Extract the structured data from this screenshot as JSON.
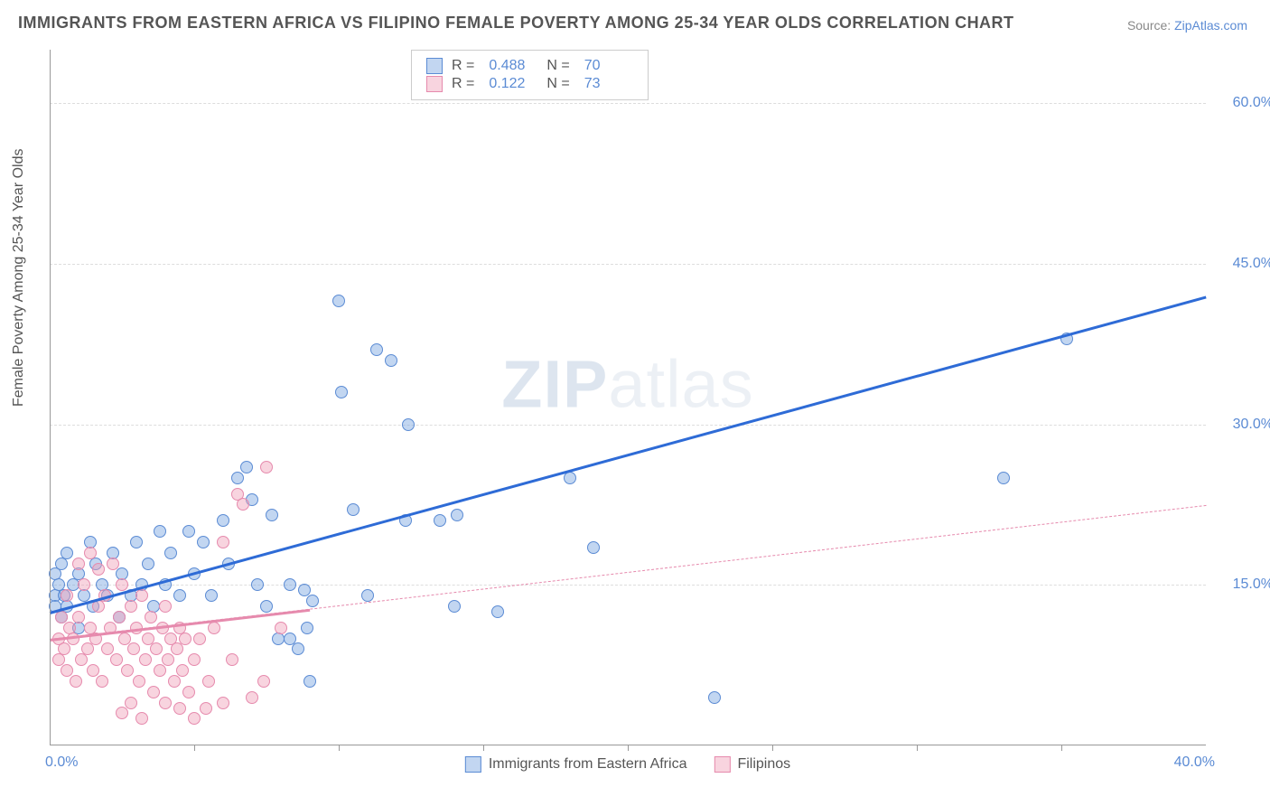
{
  "title": "IMMIGRANTS FROM EASTERN AFRICA VS FILIPINO FEMALE POVERTY AMONG 25-34 YEAR OLDS CORRELATION CHART",
  "source_label": "Source: ",
  "source_value": "ZipAtlas.com",
  "ylabel": "Female Poverty Among 25-34 Year Olds",
  "watermark_a": "ZIP",
  "watermark_b": "atlas",
  "chart": {
    "type": "scatter-with-trend",
    "background_color": "#ffffff",
    "grid_color": "#dddddd",
    "axis_color": "#999999",
    "tick_color": "#5b8bd4",
    "tick_fontsize": 16,
    "title_color": "#555555",
    "title_fontsize": 18,
    "marker_radius": 7,
    "xlim": [
      0,
      40
    ],
    "ylim": [
      0,
      65
    ],
    "yticks": [
      {
        "v": 15,
        "label": "15.0%"
      },
      {
        "v": 30,
        "label": "30.0%"
      },
      {
        "v": 45,
        "label": "45.0%"
      },
      {
        "v": 60,
        "label": "60.0%"
      }
    ],
    "xticks_minor": [
      5,
      10,
      15,
      20,
      25,
      30,
      35
    ],
    "xtick_min_label": "0.0%",
    "xtick_max_label": "40.0%",
    "series": [
      {
        "name": "Immigrants from Eastern Africa",
        "marker_fill": "rgba(120,165,225,0.45)",
        "marker_stroke": "#5b8bd4",
        "trend_color": "#2e6bd6",
        "trend_style": "solid",
        "trend_width": 2.5,
        "R": "0.488",
        "N": "70",
        "trend": {
          "x1": 0,
          "y1": 12.5,
          "x2": 40,
          "y2": 42
        },
        "solid_segment": {
          "x1": 0,
          "y1": 12.5,
          "x2": 10,
          "y2": 19.9
        },
        "points": [
          [
            0.2,
            14
          ],
          [
            0.2,
            16
          ],
          [
            0.2,
            13
          ],
          [
            0.3,
            15
          ],
          [
            0.4,
            12
          ],
          [
            0.4,
            17
          ],
          [
            0.5,
            14
          ],
          [
            0.6,
            18
          ],
          [
            0.6,
            13
          ],
          [
            0.8,
            15
          ],
          [
            1.0,
            11
          ],
          [
            1.0,
            16
          ],
          [
            1.2,
            14
          ],
          [
            1.4,
            19
          ],
          [
            1.5,
            13
          ],
          [
            1.6,
            17
          ],
          [
            1.8,
            15
          ],
          [
            2.0,
            14
          ],
          [
            2.2,
            18
          ],
          [
            2.4,
            12
          ],
          [
            2.5,
            16
          ],
          [
            2.8,
            14
          ],
          [
            3.0,
            19
          ],
          [
            3.2,
            15
          ],
          [
            3.4,
            17
          ],
          [
            3.6,
            13
          ],
          [
            3.8,
            20
          ],
          [
            4.0,
            15
          ],
          [
            4.2,
            18
          ],
          [
            4.5,
            14
          ],
          [
            4.8,
            20
          ],
          [
            5.0,
            16
          ],
          [
            5.3,
            19
          ],
          [
            5.6,
            14
          ],
          [
            6.0,
            21
          ],
          [
            6.2,
            17
          ],
          [
            6.5,
            25
          ],
          [
            6.8,
            26
          ],
          [
            7.0,
            23
          ],
          [
            7.2,
            15
          ],
          [
            7.5,
            13
          ],
          [
            7.7,
            21.5
          ],
          [
            7.9,
            10
          ],
          [
            8.3,
            10
          ],
          [
            8.3,
            15
          ],
          [
            8.6,
            9
          ],
          [
            8.9,
            11
          ],
          [
            8.8,
            14.5
          ],
          [
            9.0,
            6
          ],
          [
            9.1,
            13.5
          ],
          [
            10.0,
            41.5
          ],
          [
            10.1,
            33
          ],
          [
            10.5,
            22
          ],
          [
            11.0,
            14
          ],
          [
            11.3,
            37
          ],
          [
            11.8,
            36
          ],
          [
            12.3,
            21
          ],
          [
            12.4,
            30
          ],
          [
            13.5,
            21
          ],
          [
            14.0,
            13
          ],
          [
            14.1,
            21.5
          ],
          [
            15.5,
            12.5
          ],
          [
            18.0,
            25
          ],
          [
            18.8,
            18.5
          ],
          [
            23.0,
            4.5
          ],
          [
            33.0,
            25
          ],
          [
            35.2,
            38
          ]
        ]
      },
      {
        "name": "Filipinos",
        "marker_fill": "rgba(240,160,185,0.45)",
        "marker_stroke": "#e68aad",
        "trend_color": "#e68aad",
        "trend_style": "dashed",
        "trend_width": 1.5,
        "R": "0.122",
        "N": "73",
        "trend": {
          "x1": 0,
          "y1": 10,
          "x2": 40,
          "y2": 22.5
        },
        "solid_segment": {
          "x1": 0,
          "y1": 10,
          "x2": 9,
          "y2": 12.8
        },
        "points": [
          [
            0.3,
            10
          ],
          [
            0.3,
            8
          ],
          [
            0.4,
            12
          ],
          [
            0.5,
            9
          ],
          [
            0.6,
            14
          ],
          [
            0.6,
            7
          ],
          [
            0.7,
            11
          ],
          [
            0.8,
            10
          ],
          [
            0.9,
            6
          ],
          [
            1.0,
            12
          ],
          [
            1.0,
            17
          ],
          [
            1.1,
            8
          ],
          [
            1.2,
            15
          ],
          [
            1.3,
            9
          ],
          [
            1.4,
            11
          ],
          [
            1.4,
            18
          ],
          [
            1.5,
            7
          ],
          [
            1.6,
            10
          ],
          [
            1.7,
            13
          ],
          [
            1.7,
            16.5
          ],
          [
            1.8,
            6
          ],
          [
            1.9,
            14
          ],
          [
            2.0,
            9
          ],
          [
            2.1,
            11
          ],
          [
            2.2,
            17
          ],
          [
            2.3,
            8
          ],
          [
            2.4,
            12
          ],
          [
            2.5,
            15
          ],
          [
            2.5,
            3
          ],
          [
            2.6,
            10
          ],
          [
            2.7,
            7
          ],
          [
            2.8,
            13
          ],
          [
            2.8,
            4
          ],
          [
            2.9,
            9
          ],
          [
            3.0,
            11
          ],
          [
            3.1,
            6
          ],
          [
            3.2,
            14
          ],
          [
            3.2,
            2.5
          ],
          [
            3.3,
            8
          ],
          [
            3.4,
            10
          ],
          [
            3.5,
            12
          ],
          [
            3.6,
            5
          ],
          [
            3.7,
            9
          ],
          [
            3.8,
            7
          ],
          [
            3.9,
            11
          ],
          [
            4.0,
            4
          ],
          [
            4.0,
            13
          ],
          [
            4.1,
            8
          ],
          [
            4.2,
            10
          ],
          [
            4.3,
            6
          ],
          [
            4.4,
            9
          ],
          [
            4.5,
            3.5
          ],
          [
            4.5,
            11
          ],
          [
            4.6,
            7
          ],
          [
            4.7,
            10
          ],
          [
            4.8,
            5
          ],
          [
            5.0,
            8
          ],
          [
            5.0,
            2.5
          ],
          [
            5.2,
            10
          ],
          [
            5.4,
            3.5
          ],
          [
            5.5,
            6
          ],
          [
            5.7,
            11
          ],
          [
            6.0,
            4
          ],
          [
            6.0,
            19
          ],
          [
            6.3,
            8
          ],
          [
            6.5,
            23.5
          ],
          [
            7.5,
            26
          ],
          [
            7.4,
            6
          ],
          [
            6.7,
            22.5
          ],
          [
            7.0,
            4.5
          ],
          [
            8.0,
            11
          ]
        ]
      }
    ]
  },
  "legend_top": {
    "r_label": "R =",
    "n_label": "N ="
  },
  "legend_bottom": [
    {
      "swatch_fill": "rgba(120,165,225,0.45)",
      "swatch_stroke": "#5b8bd4",
      "label": "Immigrants from Eastern Africa"
    },
    {
      "swatch_fill": "rgba(240,160,185,0.45)",
      "swatch_stroke": "#e68aad",
      "label": "Filipinos"
    }
  ]
}
